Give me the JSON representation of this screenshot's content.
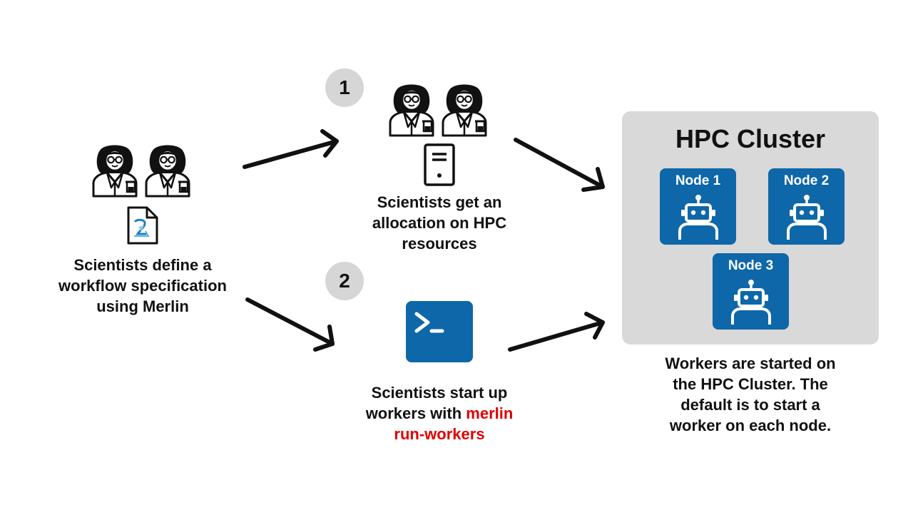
{
  "steps": {
    "one": "1",
    "two": "2"
  },
  "left_caption": [
    "Scientists define a",
    "workflow specification",
    "using Merlin"
  ],
  "top_caption": [
    "Scientists get an",
    "allocation on HPC",
    "resources"
  ],
  "bottom_caption": {
    "line1": "Scientists start up",
    "line2_prefix": "workers with ",
    "line2_command": "merlin",
    "line3_command": "run-workers"
  },
  "cluster": {
    "title": "HPC Cluster",
    "nodes": [
      "Node 1",
      "Node 2",
      "Node 3"
    ]
  },
  "cluster_caption": [
    "Workers are started on",
    "the HPC Cluster. The",
    "default is to start a",
    "worker on each node."
  ],
  "icons": {
    "scientist": "scientist-icon",
    "document": "merlin-spec-file-icon",
    "server": "server-icon",
    "terminal": "terminal-icon",
    "robot": "robot-worker-icon"
  },
  "colors": {
    "node_blue": "#0e67a8",
    "command_red": "#e00000",
    "cluster_bg": "#d9d9d9",
    "badge_bg": "#d6d6d6"
  }
}
